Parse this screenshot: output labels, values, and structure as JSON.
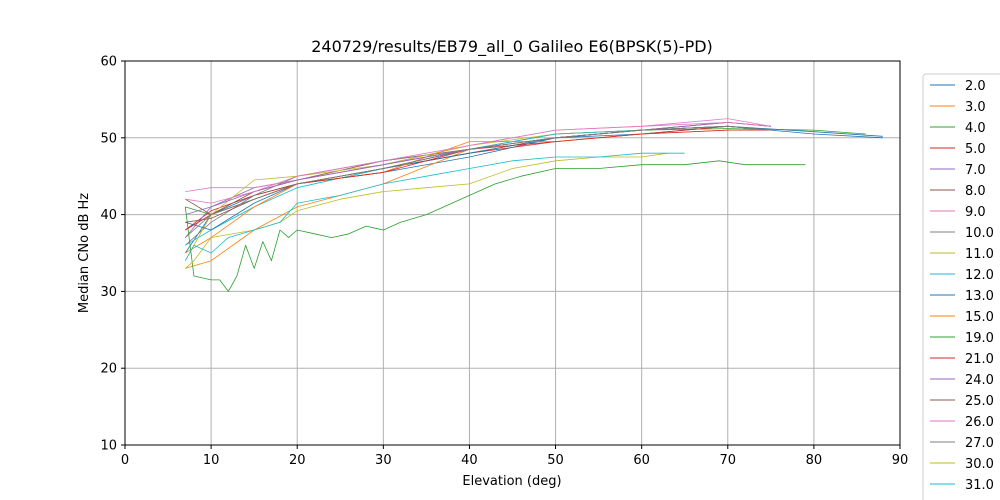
{
  "chart_data": {
    "type": "line",
    "title": "240729/results/EB79_all_0 Galileo E6(BPSK(5)-PD)",
    "xlabel": "Elevation (deg)",
    "ylabel": "Median CNo dB Hz",
    "xlim": [
      0,
      90
    ],
    "ylim": [
      10,
      60
    ],
    "xticks": [
      "0",
      "10",
      "20",
      "30",
      "40",
      "50",
      "60",
      "70",
      "80",
      "90"
    ],
    "yticks": [
      "10",
      "20",
      "30",
      "40",
      "50",
      "60"
    ],
    "grid": true,
    "legend_position": "right, outside plot",
    "series": [
      {
        "name": "2.0",
        "color": "#1f77b4",
        "x": [
          7,
          10,
          15,
          20,
          30,
          40,
          50,
          60,
          70,
          80,
          88
        ],
        "y": [
          35.0,
          40.0,
          42.5,
          44.0,
          45.5,
          47.5,
          50.0,
          50.5,
          51.5,
          50.8,
          50.2
        ]
      },
      {
        "name": "3.0",
        "color": "#ff7f0e",
        "x": [
          7,
          10,
          15,
          20,
          30,
          40,
          50,
          60,
          70,
          75
        ],
        "y": [
          33.0,
          34.0,
          38.0,
          41.0,
          44.0,
          48.5,
          50.0,
          51.0,
          51.5,
          51.0
        ]
      },
      {
        "name": "4.0",
        "color": "#2ca02c",
        "x": [
          7,
          10,
          15,
          20,
          30,
          40,
          50,
          60,
          70,
          80,
          86
        ],
        "y": [
          41.0,
          40.0,
          42.0,
          44.0,
          46.0,
          48.0,
          50.0,
          51.0,
          51.2,
          51.0,
          50.5
        ]
      },
      {
        "name": "5.0",
        "color": "#d62728",
        "x": [
          7,
          10,
          15,
          20,
          30,
          40,
          50,
          60,
          70,
          75
        ],
        "y": [
          38.0,
          40.5,
          42.5,
          44.0,
          46.0,
          48.0,
          49.5,
          50.5,
          51.5,
          51.0
        ]
      },
      {
        "name": "7.0",
        "color": "#9467bd",
        "x": [
          7,
          10,
          15,
          20,
          30,
          40,
          50,
          60,
          70,
          75
        ],
        "y": [
          37.0,
          41.0,
          43.5,
          44.5,
          46.5,
          48.5,
          50.0,
          51.0,
          52.0,
          51.5
        ]
      },
      {
        "name": "8.0",
        "color": "#8c564b",
        "x": [
          7,
          10,
          15,
          20,
          30,
          40,
          50,
          60,
          70,
          75
        ],
        "y": [
          42.0,
          40.0,
          43.0,
          44.5,
          47.0,
          48.5,
          50.5,
          51.0,
          52.0,
          51.5
        ]
      },
      {
        "name": "9.0",
        "color": "#e377c2",
        "x": [
          7,
          10,
          15,
          20,
          30,
          40,
          50,
          60,
          70,
          75
        ],
        "y": [
          43.0,
          43.5,
          43.5,
          44.5,
          46.5,
          49.0,
          51.0,
          51.5,
          52.5,
          51.5
        ]
      },
      {
        "name": "10.0",
        "color": "#7f7f7f",
        "x": [
          7,
          10,
          15,
          20,
          30,
          40,
          50,
          60,
          70,
          75
        ],
        "y": [
          36.0,
          39.0,
          42.5,
          45.0,
          47.0,
          48.5,
          50.0,
          51.0,
          51.5,
          51.0
        ]
      },
      {
        "name": "11.0",
        "color": "#bcbd22",
        "x": [
          7,
          10,
          15,
          20,
          30,
          40,
          50,
          60,
          70,
          75
        ],
        "y": [
          34.0,
          40.0,
          44.5,
          45.0,
          46.5,
          49.0,
          50.5,
          51.0,
          51.5,
          51.0
        ]
      },
      {
        "name": "12.0",
        "color": "#17becf",
        "x": [
          7,
          10,
          15,
          20,
          30,
          40,
          50,
          60,
          70,
          75
        ],
        "y": [
          36.0,
          38.0,
          41.0,
          43.5,
          46.0,
          48.5,
          50.5,
          51.0,
          51.5,
          51.0
        ]
      },
      {
        "name": "13.0",
        "color": "#1f77b4",
        "x": [
          7,
          10,
          15,
          20,
          30,
          40,
          50,
          60,
          70,
          80,
          88
        ],
        "y": [
          39.0,
          38.0,
          41.5,
          44.0,
          46.0,
          48.0,
          50.0,
          51.0,
          51.5,
          50.5,
          50.0
        ]
      },
      {
        "name": "15.0",
        "color": "#ff7f0e",
        "x": [
          7,
          10,
          15,
          20,
          30,
          40,
          50,
          60,
          70,
          75
        ],
        "y": [
          35.0,
          37.0,
          41.0,
          44.0,
          45.5,
          49.5,
          49.5,
          50.5,
          51.0,
          51.0
        ]
      },
      {
        "name": "19.0",
        "color": "#2ca02c",
        "x": [
          7,
          8,
          10,
          11,
          12,
          13,
          14,
          15,
          16,
          17,
          18,
          19,
          20,
          22,
          24,
          26,
          28,
          30,
          32,
          35,
          38,
          40,
          43,
          46,
          50,
          55,
          60,
          65,
          69,
          72,
          76,
          79
        ],
        "y": [
          41.0,
          32.0,
          31.5,
          31.5,
          30.0,
          32.0,
          36.0,
          33.0,
          36.5,
          34.0,
          38.0,
          37.0,
          38.0,
          37.5,
          37.0,
          37.5,
          38.5,
          38.0,
          39.0,
          40.0,
          41.5,
          42.5,
          44.0,
          45.0,
          46.0,
          46.0,
          46.5,
          46.5,
          47.0,
          46.5,
          46.5,
          46.5
        ]
      },
      {
        "name": "21.0",
        "color": "#d62728",
        "x": [
          7,
          10,
          15,
          20,
          30,
          40,
          50,
          60,
          70,
          75
        ],
        "y": [
          38.0,
          40.0,
          42.0,
          44.0,
          45.5,
          48.5,
          49.5,
          50.5,
          51.0,
          51.0
        ]
      },
      {
        "name": "24.0",
        "color": "#9467bd",
        "x": [
          7,
          10,
          15,
          20,
          30,
          40,
          50,
          60,
          70,
          75
        ],
        "y": [
          40.0,
          41.0,
          43.0,
          44.5,
          46.5,
          48.5,
          50.0,
          51.0,
          52.0,
          51.5
        ]
      },
      {
        "name": "25.0",
        "color": "#8c564b",
        "x": [
          7,
          10,
          15,
          20,
          30,
          40,
          50,
          60,
          70,
          75
        ],
        "y": [
          39.0,
          39.5,
          42.0,
          44.0,
          46.0,
          48.5,
          50.0,
          51.0,
          51.5,
          51.0
        ]
      },
      {
        "name": "26.0",
        "color": "#e377c2",
        "x": [
          7,
          10,
          15,
          20,
          30,
          40,
          50,
          60,
          70,
          75
        ],
        "y": [
          42.0,
          41.5,
          43.0,
          45.0,
          47.0,
          49.0,
          51.0,
          51.5,
          52.0,
          51.5
        ]
      },
      {
        "name": "27.0",
        "color": "#7f7f7f",
        "x": [
          7,
          10,
          15,
          20,
          30,
          40,
          50,
          60,
          70,
          75
        ],
        "y": [
          37.0,
          40.0,
          42.0,
          44.0,
          46.0,
          48.5,
          50.0,
          51.0,
          51.5,
          51.0
        ]
      },
      {
        "name": "30.0",
        "color": "#bcbd22",
        "x": [
          7,
          8,
          10,
          15,
          18,
          20,
          25,
          30,
          35,
          40,
          45,
          50,
          55,
          60,
          63
        ],
        "y": [
          33.0,
          34.0,
          37.0,
          38.0,
          39.0,
          40.5,
          42.0,
          43.0,
          43.5,
          44.0,
          46.0,
          47.0,
          47.5,
          47.5,
          48.0
        ]
      },
      {
        "name": "31.0",
        "color": "#17becf",
        "x": [
          7,
          8,
          10,
          12,
          15,
          18,
          20,
          25,
          30,
          35,
          40,
          45,
          50,
          55,
          60,
          65
        ],
        "y": [
          34.0,
          36.0,
          35.0,
          37.0,
          38.0,
          39.0,
          41.5,
          42.5,
          44.0,
          45.0,
          46.0,
          47.0,
          47.5,
          47.5,
          48.0,
          48.0
        ]
      }
    ]
  }
}
